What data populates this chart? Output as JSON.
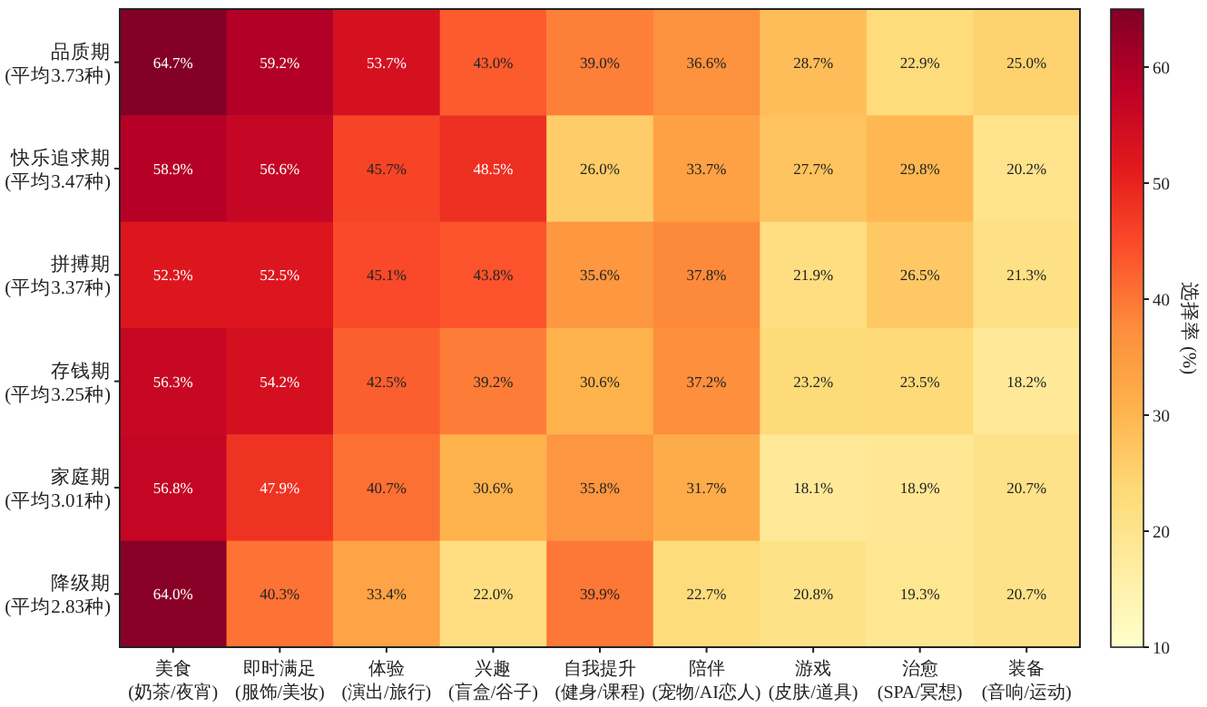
{
  "chart_data": {
    "type": "heatmap",
    "categories": [
      "美食\n(奶茶/夜宵)",
      "即时满足\n(服饰/美妆)",
      "体验\n(演出/旅行)",
      "兴趣\n(盲盒/谷子)",
      "自我提升\n(健身/课程)",
      "陪伴\n(宠物/AI恋人)",
      "游戏\n(皮肤/道具)",
      "治愈\n(SPA/冥想)",
      "装备\n(音响/运动)"
    ],
    "y_categories": [
      "品质期\n(平均3.73种)",
      "快乐追求期\n(平均3.47种)",
      "拼搏期\n(平均3.37种)",
      "存钱期\n(平均3.25种)",
      "家庭期\n(平均3.01种)",
      "降级期\n(平均2.83种)"
    ],
    "cells": [
      [
        64.7,
        59.2,
        53.7,
        43.0,
        39.0,
        36.6,
        28.7,
        22.9,
        25.0
      ],
      [
        58.9,
        56.6,
        45.7,
        48.5,
        26.0,
        33.7,
        27.7,
        29.8,
        20.2
      ],
      [
        52.3,
        52.5,
        45.1,
        43.8,
        35.6,
        37.8,
        21.9,
        26.5,
        21.3
      ],
      [
        56.3,
        54.2,
        42.5,
        39.2,
        30.6,
        37.2,
        23.2,
        23.5,
        18.2
      ],
      [
        56.8,
        47.9,
        40.7,
        30.6,
        35.8,
        31.7,
        18.1,
        18.9,
        20.7
      ],
      [
        64.0,
        40.3,
        33.4,
        22.0,
        39.9,
        22.7,
        20.8,
        19.3,
        20.7
      ]
    ],
    "cell_labels": [
      [
        "64.7%",
        "59.2%",
        "53.7%",
        "43.0%",
        "39.0%",
        "36.6%",
        "28.7%",
        "22.9%",
        "25.0%"
      ],
      [
        "58.9%",
        "56.6%",
        "45.7%",
        "48.5%",
        "26.0%",
        "33.7%",
        "27.7%",
        "29.8%",
        "20.2%"
      ],
      [
        "52.3%",
        "52.5%",
        "45.1%",
        "43.8%",
        "35.6%",
        "37.8%",
        "21.9%",
        "26.5%",
        "21.3%"
      ],
      [
        "56.3%",
        "54.2%",
        "42.5%",
        "39.2%",
        "30.6%",
        "37.2%",
        "23.2%",
        "23.5%",
        "18.2%"
      ],
      [
        "56.8%",
        "47.9%",
        "40.7%",
        "30.6%",
        "35.8%",
        "31.7%",
        "18.1%",
        "18.9%",
        "20.7%"
      ],
      [
        "64.0%",
        "40.3%",
        "33.4%",
        "22.0%",
        "39.9%",
        "22.7%",
        "20.8%",
        "19.3%",
        "20.7%"
      ]
    ],
    "clabel": "选择率 (%)",
    "clim": [
      10,
      65
    ],
    "cticks": [
      10,
      20,
      30,
      40,
      50,
      60
    ]
  }
}
